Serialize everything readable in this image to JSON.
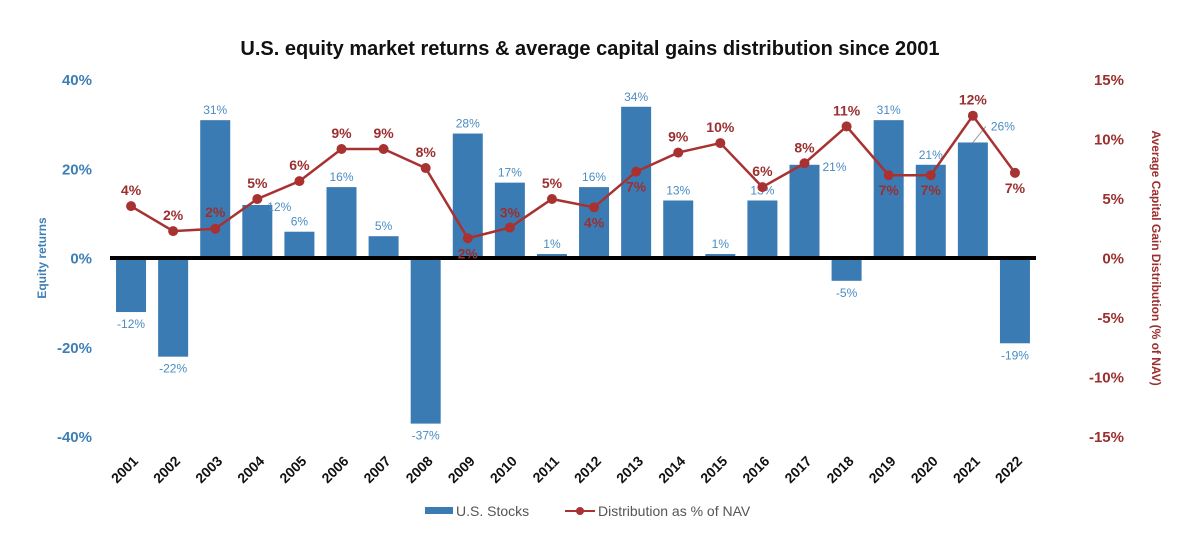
{
  "chart_data": {
    "type": "bar",
    "title": "U.S. equity market returns & average capital gains distribution since 2001",
    "categories": [
      "2001",
      "2002",
      "2003",
      "2004",
      "2005",
      "2006",
      "2007",
      "2008",
      "2009",
      "2010",
      "2011",
      "2012",
      "2013",
      "2014",
      "2015",
      "2016",
      "2017",
      "2018",
      "2019",
      "2020",
      "2021",
      "2022"
    ],
    "series": [
      {
        "name": "U.S. Stocks",
        "type": "bar",
        "axis": "left",
        "color": "#3b7bb3",
        "values": [
          -12,
          -22,
          31,
          12,
          6,
          16,
          5,
          -37,
          28,
          17,
          1,
          16,
          34,
          13,
          1,
          13,
          21,
          -5,
          31,
          21,
          26,
          -19
        ],
        "labels": [
          "-12%",
          "-22%",
          "31%",
          "12%",
          "6%",
          "16%",
          "5%",
          "-37%",
          "28%",
          "17%",
          "1%",
          "16%",
          "34%",
          "13%",
          "1%",
          "13%",
          "21%",
          "-5%",
          "31%",
          "21%",
          "26%",
          "-19%"
        ]
      },
      {
        "name": "Distribution as % of NAV",
        "type": "line",
        "axis": "right",
        "color": "#a83232",
        "values": [
          4.4,
          2.3,
          2.5,
          5.0,
          6.5,
          9.2,
          9.2,
          7.6,
          1.7,
          2.6,
          5.0,
          4.3,
          7.3,
          8.9,
          9.7,
          6.0,
          8.0,
          11.1,
          7.0,
          7.0,
          12.0,
          7.2
        ],
        "labels": [
          "4%",
          "2%",
          "2%",
          "5%",
          "6%",
          "9%",
          "9%",
          "8%",
          "2%",
          "3%",
          "5%",
          "4%",
          "7%",
          "9%",
          "10%",
          "6%",
          "8%",
          "11%",
          "7%",
          "7%",
          "12%",
          "7%"
        ]
      }
    ],
    "ylabel": "Equity returns",
    "ylim": [
      -40,
      40
    ],
    "yticks": [
      "40%",
      "20%",
      "0%",
      "-20%",
      "-40%"
    ],
    "y2label": "Average Capital Gain Distribution (% of NAV)",
    "y2lim": [
      -15,
      15
    ],
    "y2ticks": [
      "15%",
      "10%",
      "5%",
      "0%",
      "-5%",
      "-10%",
      "-15%"
    ],
    "xlabel": "",
    "grid": false,
    "legend_position": "bottom-center"
  }
}
